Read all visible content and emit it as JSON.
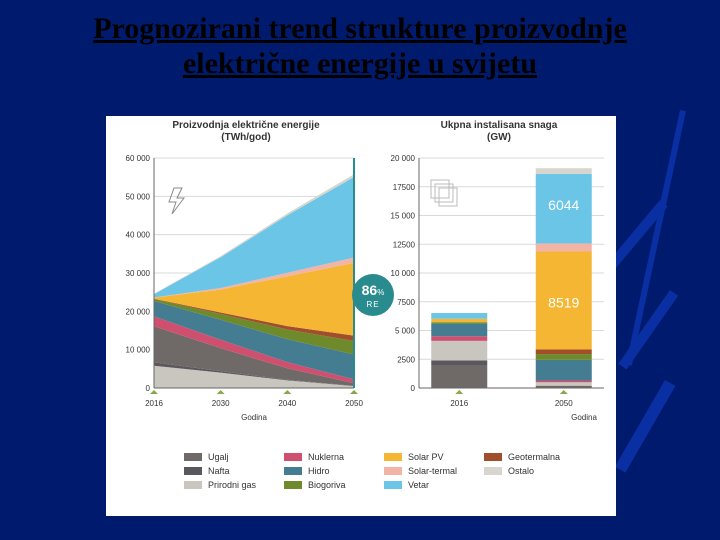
{
  "title_line1": "Prognozirani trend strukture proizvodnje",
  "title_line2": "električne energije u svijetu",
  "panel_bg": "#ffffff",
  "grid_color": "#d9d9d9",
  "left_chart": {
    "type": "area",
    "title_l1": "Proizvodnja električne energije",
    "title_l2": "(TWh/god)",
    "x_axis_title": "Godina",
    "x_categories": [
      "2016",
      "2030",
      "2040",
      "2050"
    ],
    "y_ticks": [
      "0",
      "10 000",
      "20 000",
      "30 000",
      "40 000",
      "50 000",
      "60 000"
    ],
    "y_max": 60000,
    "series": [
      {
        "key": "prirodni_gas",
        "color": "#c9c6bf",
        "values": [
          5800,
          4000,
          2000,
          500
        ]
      },
      {
        "key": "nafta",
        "color": "#5a585c",
        "values": [
          900,
          400,
          150,
          50
        ]
      },
      {
        "key": "ugalj",
        "color": "#6f6a68",
        "values": [
          9400,
          6000,
          3000,
          700
        ]
      },
      {
        "key": "nuklearna",
        "color": "#cf4f6f",
        "values": [
          2600,
          2200,
          1600,
          1000
        ]
      },
      {
        "key": "hidro",
        "color": "#447d91",
        "values": [
          4000,
          5200,
          6000,
          6500
        ]
      },
      {
        "key": "biogoriva",
        "color": "#6e8a2a",
        "values": [
          500,
          1500,
          2500,
          3500
        ]
      },
      {
        "key": "geotermalna",
        "color": "#a14e2c",
        "values": [
          80,
          400,
          900,
          1400
        ]
      },
      {
        "key": "solar_pv",
        "color": "#f5b733",
        "values": [
          300,
          6000,
          13000,
          19000
        ]
      },
      {
        "key": "solar_termal",
        "color": "#f3b4a8",
        "values": [
          20,
          400,
          900,
          1400
        ]
      },
      {
        "key": "vetar",
        "color": "#6ac5e6",
        "values": [
          900,
          8000,
          15000,
          21000
        ]
      },
      {
        "key": "ostalo",
        "color": "#d8d5cf",
        "values": [
          100,
          300,
          500,
          700
        ]
      }
    ]
  },
  "right_chart": {
    "type": "stacked-bar",
    "title_l1": "Ukpna instalisana snaga",
    "title_l2": "(GW)",
    "x_axis_title": "Godina",
    "x_categories": [
      "2016",
      "2050"
    ],
    "y_ticks": [
      "0",
      "2500",
      "5 000",
      "7500",
      "10 000",
      "12500",
      "15 000",
      "17500",
      "20 000"
    ],
    "y_max": 20000,
    "stacks": {
      "2016": [
        {
          "key": "ugalj",
          "color": "#6f6a68",
          "value": 2000
        },
        {
          "key": "nafta",
          "color": "#5a585c",
          "value": 400
        },
        {
          "key": "prirodni_gas",
          "color": "#c9c6bf",
          "value": 1700
        },
        {
          "key": "nuklearna",
          "color": "#cf4f6f",
          "value": 400
        },
        {
          "key": "hidro",
          "color": "#447d91",
          "value": 1100
        },
        {
          "key": "biogoriva",
          "color": "#6e8a2a",
          "value": 120
        },
        {
          "key": "solar_pv",
          "color": "#f5b733",
          "value": 300
        },
        {
          "key": "vetar",
          "color": "#6ac5e6",
          "value": 500
        }
      ],
      "2050": [
        {
          "key": "ugalj",
          "color": "#6f6a68",
          "value": 200
        },
        {
          "key": "prirodni_gas",
          "color": "#c9c6bf",
          "value": 300
        },
        {
          "key": "nuklearna",
          "color": "#cf4f6f",
          "value": 150
        },
        {
          "key": "hidro",
          "color": "#447d91",
          "value": 1800
        },
        {
          "key": "biogoriva",
          "color": "#6e8a2a",
          "value": 500
        },
        {
          "key": "geotermalna",
          "color": "#a14e2c",
          "value": 400
        },
        {
          "key": "solar_pv",
          "color": "#f5b733",
          "value": 8519
        },
        {
          "key": "solar_termal",
          "color": "#f3b4a8",
          "value": 700
        },
        {
          "key": "vetar",
          "color": "#6ac5e6",
          "value": 6044
        },
        {
          "key": "ostalo",
          "color": "#d8d5cf",
          "value": 500
        }
      ]
    },
    "value_labels": [
      {
        "text": "8519",
        "bar": "2050",
        "cy_value": 7000,
        "color": "#ffffff"
      },
      {
        "text": "6044",
        "bar": "2050",
        "cy_value": 15500,
        "color": "#ffffff"
      }
    ]
  },
  "badge": {
    "big": "86",
    "pct": "%",
    "re": "RE"
  },
  "legend": {
    "items": [
      {
        "label": "Ugalj",
        "color": "#6f6a68"
      },
      {
        "label": "Nafta",
        "color": "#5a585c"
      },
      {
        "label": "Prirodni gas",
        "color": "#c9c6bf"
      },
      {
        "label": "Nuklerna",
        "color": "#cf4f6f"
      },
      {
        "label": "Hidro",
        "color": "#447d91"
      },
      {
        "label": "Biogoriva",
        "color": "#6e8a2a"
      },
      {
        "label": "Solar PV",
        "color": "#f5b733"
      },
      {
        "label": "Solar-termal",
        "color": "#f3b4a8"
      },
      {
        "label": "Vetar",
        "color": "#6ac5e6"
      },
      {
        "label": "Geotermalna",
        "color": "#a14e2c"
      },
      {
        "label": "Ostalo",
        "color": "#d8d5cf"
      }
    ],
    "columns": [
      [
        0,
        1,
        2
      ],
      [
        3,
        4,
        5
      ],
      [
        6,
        7,
        8
      ],
      [
        9,
        10
      ]
    ]
  }
}
